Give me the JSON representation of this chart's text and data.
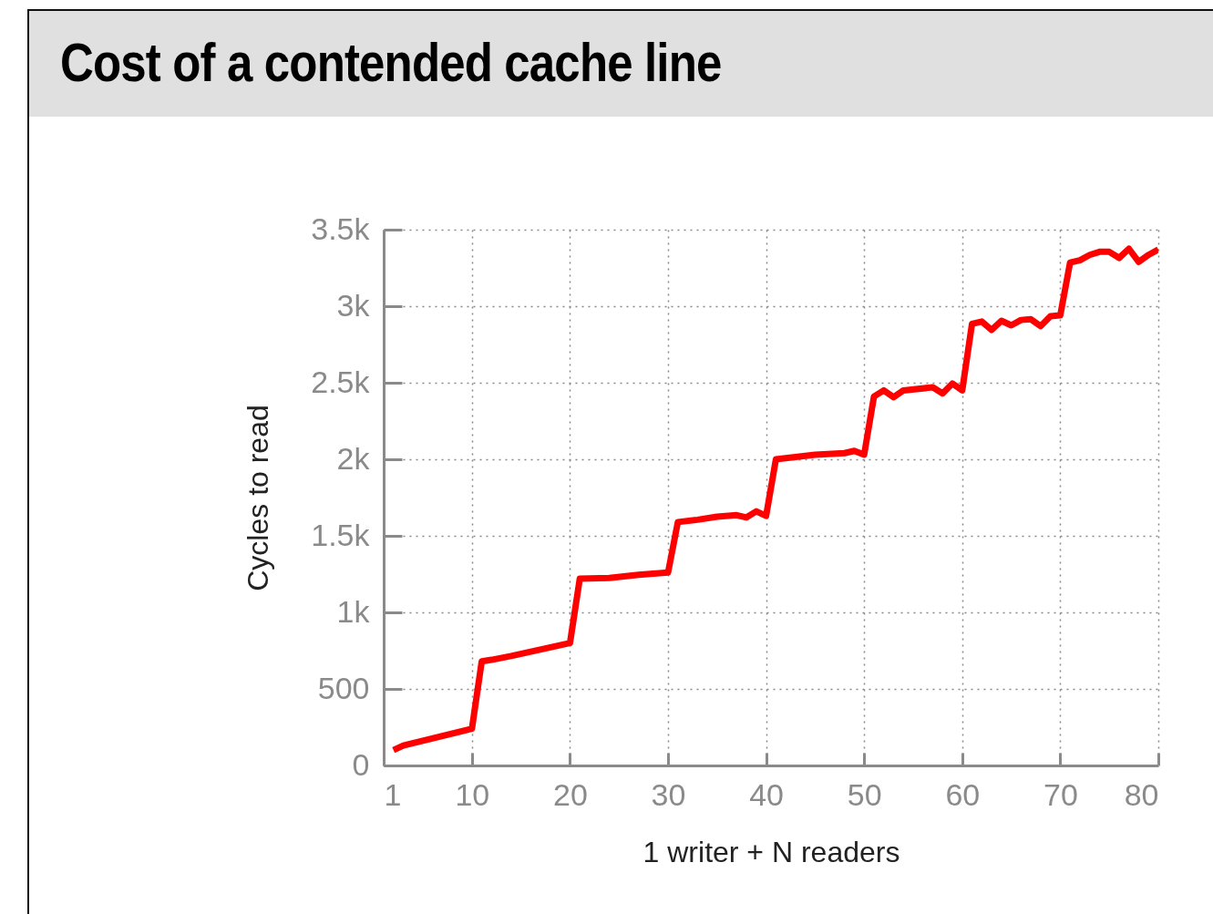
{
  "chart_data": {
    "type": "line",
    "title": "Cost of a contended cache line",
    "xlabel": "1 writer + N readers",
    "ylabel": "Cycles to read",
    "x": [
      2,
      3,
      10,
      11,
      12,
      14,
      20,
      21,
      24,
      27,
      30,
      31,
      33,
      35,
      37,
      38,
      39,
      40,
      41,
      45,
      48,
      49,
      50,
      51,
      52,
      53,
      54,
      57,
      58,
      59,
      60,
      61,
      62,
      63,
      64,
      65,
      66,
      67,
      68,
      69,
      70,
      71,
      72,
      73,
      74,
      75,
      76,
      77,
      78,
      79,
      80
    ],
    "series": [
      {
        "color": "#ff0000",
        "values": [
          100,
          130,
          240,
          680,
          690,
          715,
          800,
          1220,
          1225,
          1245,
          1260,
          1590,
          1605,
          1625,
          1635,
          1620,
          1660,
          1630,
          2000,
          2030,
          2040,
          2055,
          2030,
          2410,
          2450,
          2405,
          2450,
          2470,
          2430,
          2495,
          2450,
          2885,
          2900,
          2845,
          2905,
          2875,
          2910,
          2915,
          2870,
          2935,
          2940,
          3285,
          3300,
          3335,
          3355,
          3355,
          3315,
          3375,
          3290,
          3335,
          3370
        ]
      }
    ],
    "xlim": [
      1,
      80
    ],
    "xticks": [
      1,
      10,
      20,
      30,
      40,
      50,
      60,
      70,
      80
    ],
    "ylim": [
      0,
      3500
    ],
    "yticks": [
      0,
      500,
      {
        "value": 1000,
        "label": "1k"
      },
      {
        "value": 1500,
        "label": "1.5k"
      },
      {
        "value": 2000,
        "label": "2k"
      },
      {
        "value": 2500,
        "label": "2.5k"
      },
      {
        "value": 3000,
        "label": "3k"
      },
      {
        "value": 3500,
        "label": "3.5k"
      }
    ],
    "grid": true
  }
}
